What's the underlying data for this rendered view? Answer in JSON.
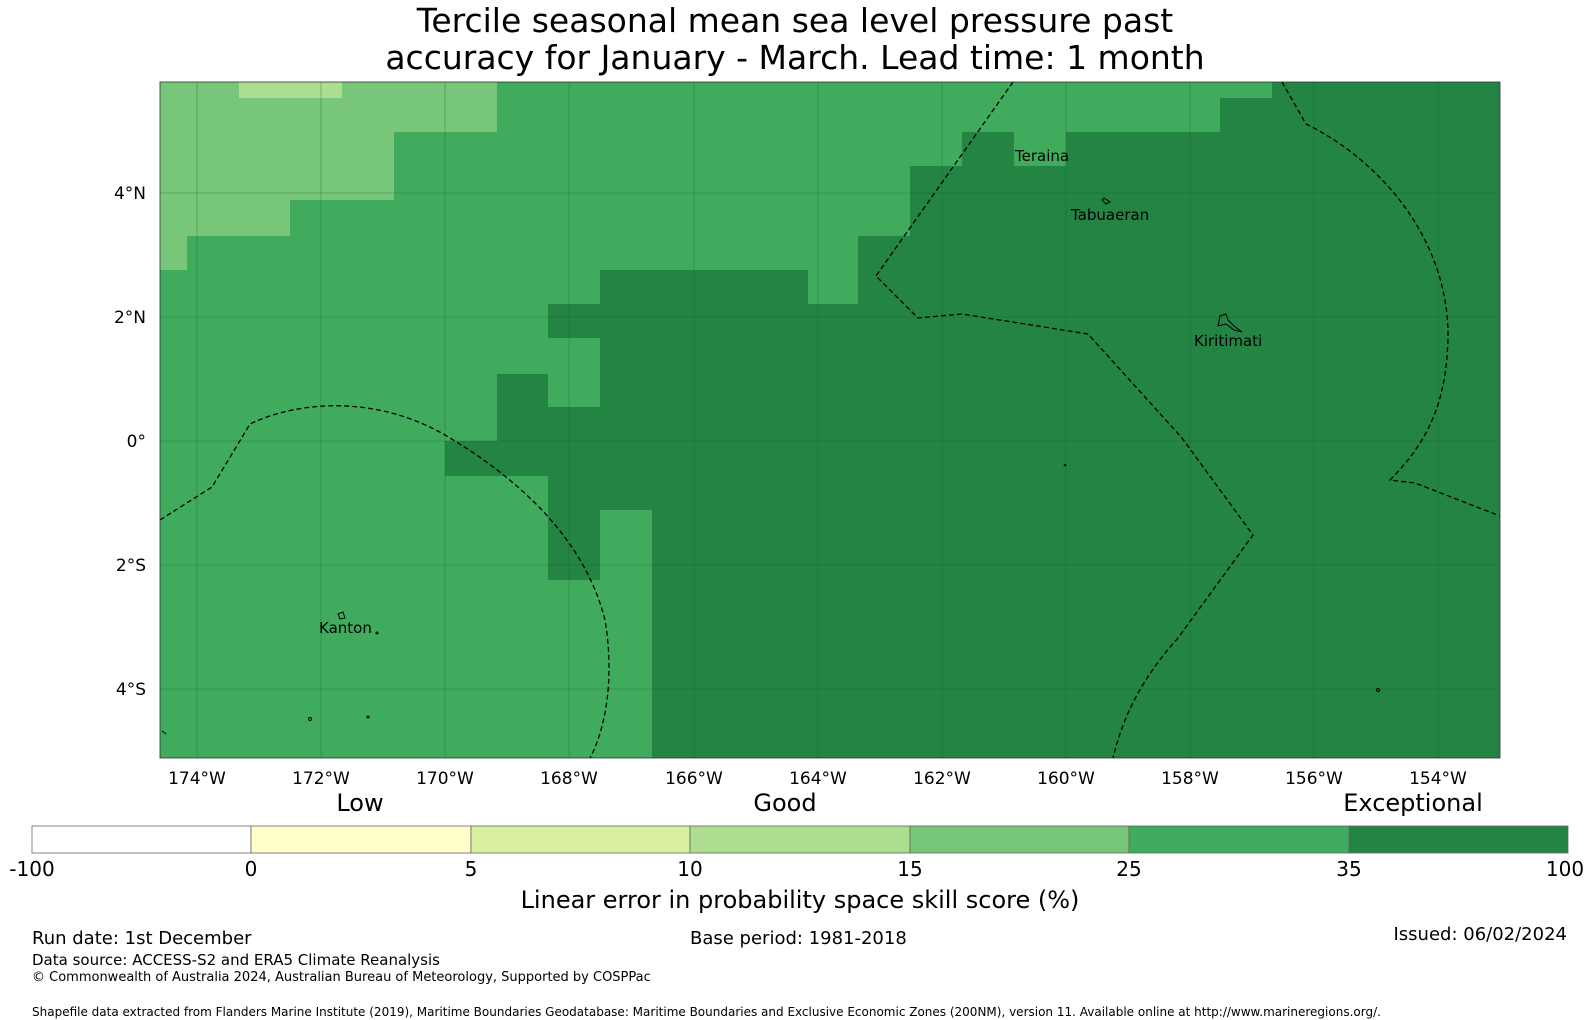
{
  "title": {
    "line1": "Tercile seasonal mean sea level pressure past",
    "line2": "accuracy for January - March. Lead time: 1 month"
  },
  "map": {
    "lat_labels": [
      "4°N",
      "2°N",
      "0°",
      "2°S",
      "4°S"
    ],
    "lon_labels": [
      "174°W",
      "172°W",
      "170°W",
      "168°W",
      "166°W",
      "164°W",
      "162°W",
      "160°W",
      "158°W",
      "156°W",
      "154°W"
    ],
    "places": [
      {
        "name": "Teraina"
      },
      {
        "name": "Tabuaeran"
      },
      {
        "name": "Kiritimati"
      },
      {
        "name": "Kanton"
      }
    ],
    "colors": {
      "band_15_25": "#78c679",
      "band_25_35": "#41ab5d",
      "band_35_100": "#238443",
      "band_10_15": "#addd8e"
    }
  },
  "legend": {
    "categories": [
      "Low",
      "Good",
      "Exceptional"
    ],
    "ticks": [
      "-100",
      "0",
      "5",
      "10",
      "15",
      "25",
      "35",
      "100"
    ],
    "colors": [
      "#ffffff",
      "#ffffcc",
      "#d9f0a3",
      "#addd8e",
      "#78c679",
      "#41ab5d",
      "#238443"
    ],
    "label": "Linear error in probability space skill score (%)"
  },
  "footer": {
    "run_date": "Run date: 1st December",
    "base_period": "Base period: 1981-2018",
    "issued": "Issued: 06/02/2024",
    "data_source": "Data source: ACCESS-S2 and ERA5 Climate Reanalysis",
    "copyright": "© Commonwealth of Australia 2024, Australian Bureau of Meteorology, Supported by COSPPac",
    "shapefile": "Shapefile data extracted from Flanders Marine Institute (2019), Maritime Boundaries Geodatabase: Maritime Boundaries and Exclusive Economic Zones (200NM), version 11. Available online at http://www.marineregions.org/."
  }
}
